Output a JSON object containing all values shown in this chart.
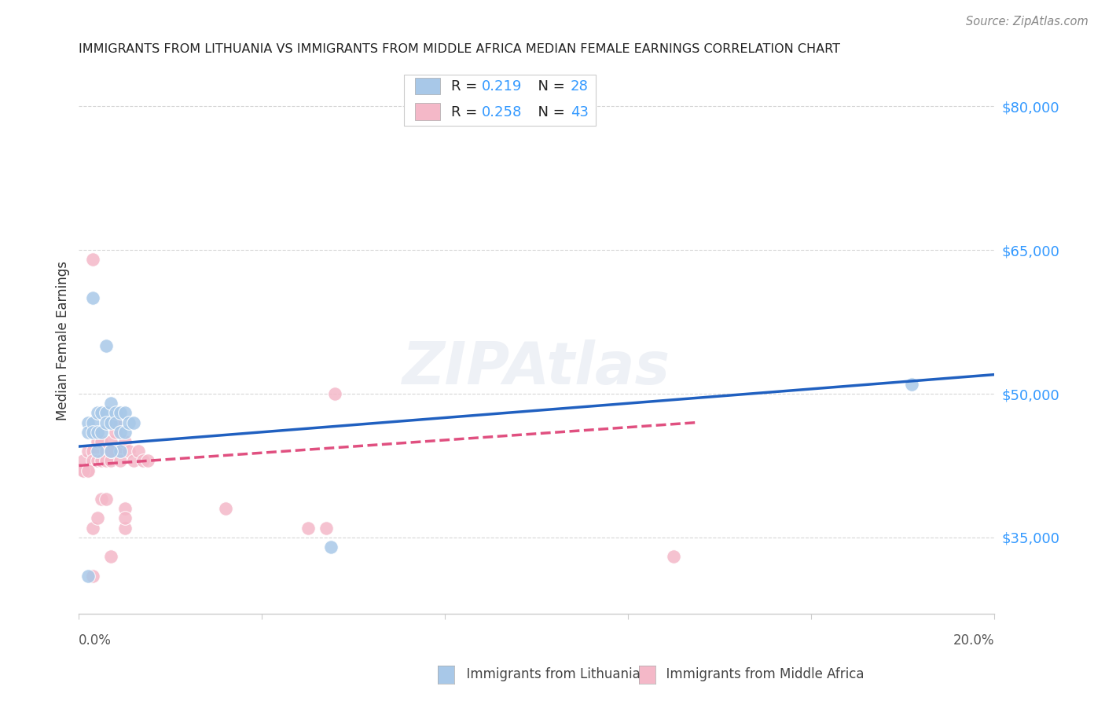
{
  "title": "IMMIGRANTS FROM LITHUANIA VS IMMIGRANTS FROM MIDDLE AFRICA MEDIAN FEMALE EARNINGS CORRELATION CHART",
  "source": "Source: ZipAtlas.com",
  "ylabel": "Median Female Earnings",
  "yticks": [
    35000,
    50000,
    65000,
    80000
  ],
  "ytick_labels": [
    "$35,000",
    "$50,000",
    "$65,000",
    "$80,000"
  ],
  "xmin": 0.0,
  "xmax": 0.2,
  "ymin": 27000,
  "ymax": 84000,
  "color_blue": "#a8c8e8",
  "color_pink": "#f4b8c8",
  "trend_blue": "#2060c0",
  "trend_pink": "#e05080",
  "watermark": "ZIPAtlas",
  "legend1_label": "Immigrants from Lithuania",
  "legend2_label": "Immigrants from Middle Africa",
  "blue_x": [
    0.002,
    0.002,
    0.003,
    0.003,
    0.004,
    0.004,
    0.005,
    0.005,
    0.006,
    0.006,
    0.007,
    0.007,
    0.008,
    0.008,
    0.009,
    0.009,
    0.01,
    0.01,
    0.011,
    0.012,
    0.003,
    0.006,
    0.002,
    0.182,
    0.055,
    0.009,
    0.004,
    0.007
  ],
  "blue_y": [
    47000,
    46000,
    47000,
    46000,
    48000,
    46000,
    48000,
    46000,
    48000,
    47000,
    49000,
    47000,
    48000,
    47000,
    48000,
    46000,
    48000,
    46000,
    47000,
    47000,
    60000,
    55000,
    31000,
    51000,
    34000,
    44000,
    44000,
    44000
  ],
  "pink_x": [
    0.001,
    0.001,
    0.002,
    0.002,
    0.003,
    0.003,
    0.004,
    0.004,
    0.005,
    0.005,
    0.006,
    0.006,
    0.007,
    0.007,
    0.008,
    0.008,
    0.009,
    0.009,
    0.01,
    0.011,
    0.012,
    0.013,
    0.014,
    0.015,
    0.003,
    0.004,
    0.005,
    0.006,
    0.007,
    0.008,
    0.056,
    0.032,
    0.001,
    0.002,
    0.003,
    0.13,
    0.05,
    0.007,
    0.003,
    0.01,
    0.01,
    0.01,
    0.054
  ],
  "pink_y": [
    43000,
    42000,
    44000,
    42000,
    44000,
    43000,
    45000,
    43000,
    45000,
    43000,
    44000,
    43000,
    45000,
    43000,
    47000,
    44000,
    44000,
    43000,
    45000,
    44000,
    43000,
    44000,
    43000,
    43000,
    36000,
    37000,
    39000,
    39000,
    44000,
    46000,
    50000,
    38000,
    42000,
    42000,
    64000,
    33000,
    36000,
    33000,
    31000,
    38000,
    36000,
    37000,
    36000
  ],
  "blue_trend_x": [
    0.0,
    0.2
  ],
  "blue_trend_y": [
    44500,
    52000
  ],
  "pink_trend_x": [
    0.0,
    0.135
  ],
  "pink_trend_y": [
    42500,
    47000
  ]
}
